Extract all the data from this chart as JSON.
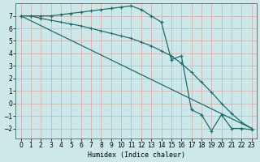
{
  "xlabel": "Humidex (Indice chaleur)",
  "bg_color": "#cde8e8",
  "grid_color": "#d8b0b0",
  "line_color": "#1a6e6e",
  "xlim": [
    -0.5,
    23.5
  ],
  "ylim": [
    -2.8,
    8.0
  ],
  "yticks": [
    -2,
    -1,
    0,
    1,
    2,
    3,
    4,
    5,
    6,
    7
  ],
  "xticks": [
    0,
    1,
    2,
    3,
    4,
    5,
    6,
    7,
    8,
    9,
    10,
    11,
    12,
    13,
    14,
    15,
    16,
    17,
    18,
    19,
    20,
    21,
    22,
    23
  ],
  "line1_x": [
    0,
    1,
    2,
    3,
    4,
    5,
    6,
    7,
    8,
    9,
    10,
    11,
    12,
    13,
    14,
    15,
    16,
    17,
    18,
    19,
    20,
    21,
    22,
    23
  ],
  "line1_y": [
    7.0,
    7.0,
    7.0,
    7.0,
    7.1,
    7.2,
    7.3,
    7.4,
    7.5,
    7.6,
    7.7,
    7.8,
    7.5,
    7.0,
    6.5,
    3.5,
    3.8,
    -0.5,
    -0.9,
    -2.2,
    -0.9,
    -2.0,
    -2.0,
    -2.1
  ],
  "line2_x": [
    0,
    23
  ],
  "line2_y": [
    7.0,
    -2.0
  ],
  "line3_x": [
    0,
    1,
    2,
    3,
    4,
    5,
    6,
    7,
    8,
    9,
    10,
    11,
    12,
    13,
    14,
    15,
    16,
    17,
    18,
    19,
    20,
    21,
    22,
    23
  ],
  "line3_y": [
    7.0,
    7.0,
    6.8,
    6.65,
    6.5,
    6.35,
    6.2,
    6.0,
    5.8,
    5.6,
    5.4,
    5.2,
    4.9,
    4.6,
    4.2,
    3.8,
    3.2,
    2.5,
    1.7,
    0.9,
    0.0,
    -0.8,
    -1.5,
    -2.0
  ],
  "xlabel_fontsize": 6,
  "tick_fontsize": 5.5
}
